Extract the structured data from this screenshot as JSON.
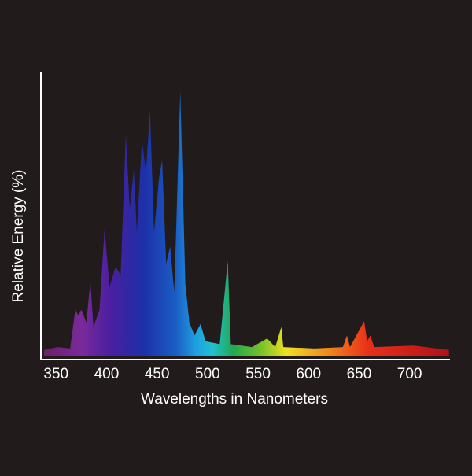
{
  "chart_data": {
    "type": "area",
    "x_label": "Wavelengths in Nanometers",
    "y_label": "Relative Energy (%)",
    "x": [
      338,
      352,
      364,
      369,
      372,
      375,
      380,
      384,
      387,
      393,
      398,
      403,
      409,
      414,
      419,
      423,
      427,
      430,
      435,
      439,
      443,
      447,
      452,
      455,
      459,
      463,
      467,
      473,
      478,
      482,
      487,
      493,
      498,
      512,
      520,
      523,
      544,
      559,
      567,
      573,
      575,
      606,
      634,
      638,
      641,
      655,
      658,
      661,
      665,
      704,
      739
    ],
    "values": [
      2,
      3,
      2.5,
      16,
      14,
      16,
      11.5,
      26,
      10,
      16,
      44,
      24,
      31,
      28,
      77,
      51,
      65,
      43,
      75,
      64,
      85,
      43,
      62,
      68,
      32,
      38,
      22,
      92,
      25,
      11.5,
      7,
      11,
      5,
      4,
      33,
      4,
      3,
      6,
      3,
      10,
      3,
      2.5,
      3,
      7,
      3,
      12,
      5,
      7,
      3,
      3.5,
      2
    ],
    "xlim": [
      335,
      740
    ],
    "ylim": [
      0,
      100
    ],
    "xticks": [
      350,
      400,
      450,
      500,
      550,
      600,
      650,
      700
    ],
    "grid": false
  }
}
